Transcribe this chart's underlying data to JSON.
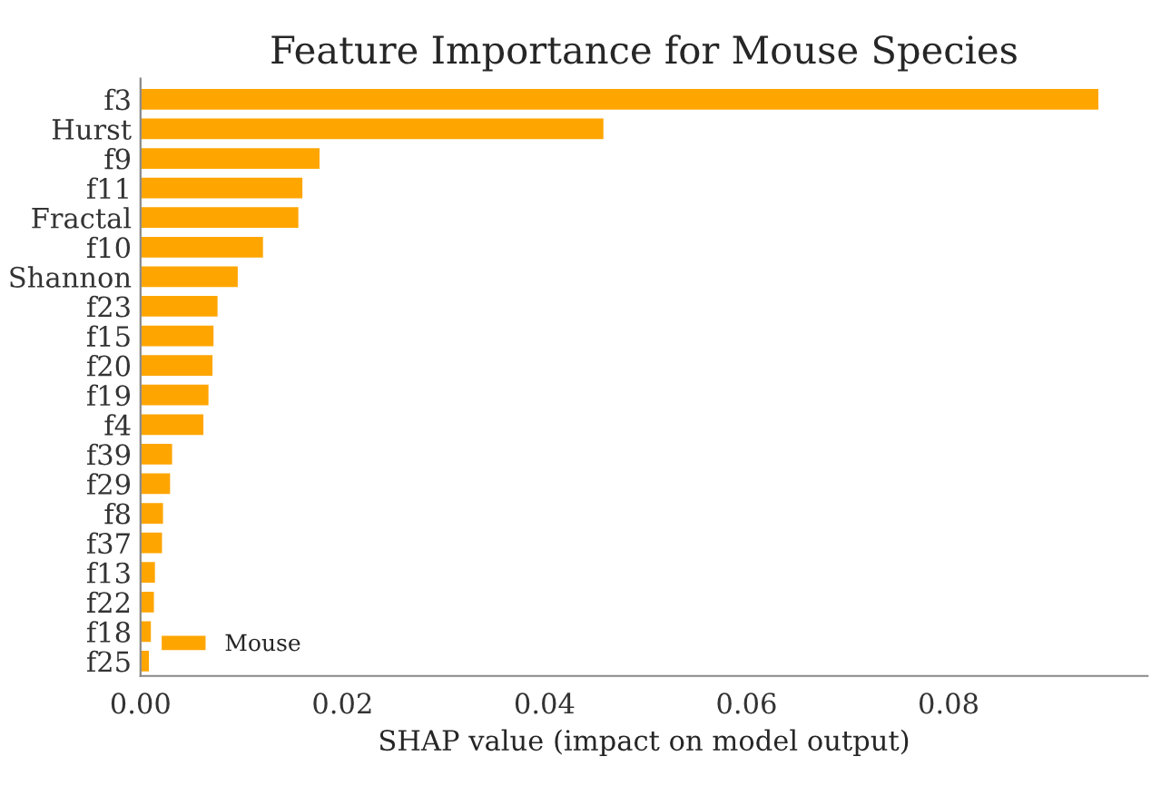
{
  "chart_data": {
    "type": "bar",
    "orientation": "horizontal",
    "title": "Feature Importance for Mouse Species",
    "xlabel": "SHAP value (impact on model output)",
    "categories": [
      "f3",
      "Hurst",
      "f9",
      "f11",
      "Fractal",
      "f10",
      "Shannon",
      "f23",
      "f15",
      "f20",
      "f19",
      "f4",
      "f39",
      "f29",
      "f8",
      "f37",
      "f13",
      "f22",
      "f18",
      "f25"
    ],
    "series": [
      {
        "name": "Mouse",
        "color": "#ffa500",
        "values": [
          0.0949,
          0.0459,
          0.0178,
          0.0161,
          0.0157,
          0.0122,
          0.0097,
          0.0077,
          0.0073,
          0.0072,
          0.0068,
          0.0063,
          0.0032,
          0.003,
          0.0023,
          0.0022,
          0.0015,
          0.0014,
          0.0011,
          0.0009
        ]
      }
    ],
    "xlim": [
      0,
      0.0997
    ],
    "xticks": [
      {
        "value": 0,
        "label": "0.00"
      },
      {
        "value": 0.02,
        "label": "0.02"
      },
      {
        "value": 0.04,
        "label": "0.04"
      },
      {
        "value": 0.06,
        "label": "0.06"
      },
      {
        "value": 0.08,
        "label": "0.08"
      }
    ],
    "legend": "lower left",
    "grid": false
  }
}
